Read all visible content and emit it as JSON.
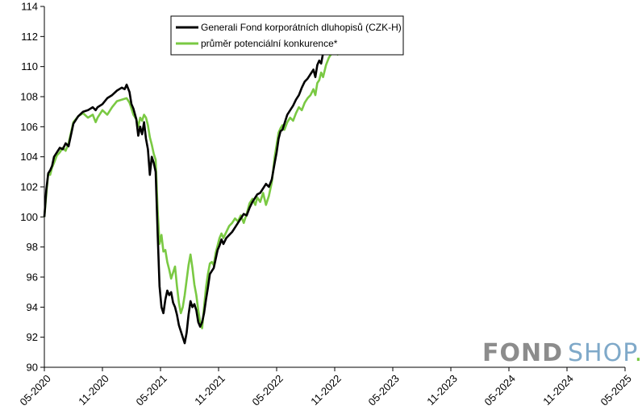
{
  "chart_data": {
    "type": "line",
    "title": "",
    "xlabel": "",
    "ylabel": "",
    "ylim": [
      90,
      114
    ],
    "yticks": [
      90,
      92,
      94,
      96,
      98,
      100,
      102,
      104,
      106,
      108,
      110,
      112,
      114
    ],
    "xticks": [
      "05-2020",
      "11-2020",
      "05-2021",
      "11-2021",
      "05-2022",
      "11-2022",
      "05-2023",
      "11-2023",
      "05-2024",
      "11-2024",
      "05-2025"
    ],
    "grid": false,
    "legend_position": "top-center",
    "series": [
      {
        "name": "Generali Fond korporátních dluhopisů (CZK-H)",
        "color": "#000000",
        "points": [
          [
            0,
            100
          ],
          [
            0.2,
            101.8
          ],
          [
            0.4,
            102.9
          ],
          [
            0.6,
            103.1
          ],
          [
            0.8,
            103.4
          ],
          [
            1.0,
            104.0
          ],
          [
            1.3,
            104.3
          ],
          [
            1.6,
            104.6
          ],
          [
            1.9,
            104.5
          ],
          [
            2.2,
            104.9
          ],
          [
            2.5,
            104.7
          ],
          [
            3.0,
            106.2
          ],
          [
            3.5,
            106.7
          ],
          [
            4.0,
            107.0
          ],
          [
            4.5,
            107.1
          ],
          [
            5.0,
            107.3
          ],
          [
            5.3,
            107.1
          ],
          [
            5.5,
            107.3
          ],
          [
            6.0,
            107.5
          ],
          [
            6.5,
            107.9
          ],
          [
            7.0,
            108.1
          ],
          [
            7.5,
            108.4
          ],
          [
            8.0,
            108.6
          ],
          [
            8.3,
            108.5
          ],
          [
            8.5,
            108.8
          ],
          [
            8.8,
            108.3
          ],
          [
            9.0,
            107.5
          ],
          [
            9.2,
            107.2
          ],
          [
            9.5,
            106.5
          ],
          [
            9.7,
            105.4
          ],
          [
            9.9,
            106.0
          ],
          [
            10.1,
            105.5
          ],
          [
            10.3,
            106.3
          ],
          [
            10.5,
            105.2
          ],
          [
            10.7,
            104.5
          ],
          [
            10.9,
            102.8
          ],
          [
            11.1,
            104.0
          ],
          [
            11.3,
            103.6
          ],
          [
            11.5,
            103.0
          ],
          [
            11.7,
            99.0
          ],
          [
            11.9,
            95.4
          ],
          [
            12.1,
            94.0
          ],
          [
            12.3,
            93.6
          ],
          [
            12.5,
            94.5
          ],
          [
            12.7,
            95.1
          ],
          [
            12.9,
            94.8
          ],
          [
            13.1,
            95.0
          ],
          [
            13.3,
            94.3
          ],
          [
            13.5,
            94.0
          ],
          [
            13.7,
            93.5
          ],
          [
            13.9,
            92.8
          ],
          [
            14.1,
            92.4
          ],
          [
            14.3,
            92.0
          ],
          [
            14.5,
            91.6
          ],
          [
            14.7,
            92.3
          ],
          [
            14.9,
            93.5
          ],
          [
            15.1,
            94.4
          ],
          [
            15.3,
            94.0
          ],
          [
            15.5,
            94.2
          ],
          [
            15.7,
            93.8
          ],
          [
            15.9,
            93.0
          ],
          [
            16.1,
            92.7
          ],
          [
            16.3,
            93.0
          ],
          [
            16.5,
            93.6
          ],
          [
            16.7,
            94.5
          ],
          [
            16.9,
            95.3
          ],
          [
            17.1,
            96.2
          ],
          [
            17.3,
            96.4
          ],
          [
            17.5,
            96.6
          ],
          [
            17.7,
            97.2
          ],
          [
            17.9,
            97.8
          ],
          [
            18.1,
            98.1
          ],
          [
            18.3,
            98.5
          ],
          [
            18.5,
            98.2
          ],
          [
            18.8,
            98.6
          ],
          [
            19.1,
            98.8
          ],
          [
            19.4,
            99.0
          ],
          [
            19.7,
            99.3
          ],
          [
            20.0,
            99.6
          ],
          [
            20.3,
            99.9
          ],
          [
            20.6,
            100.2
          ],
          [
            20.9,
            100.1
          ],
          [
            21.2,
            100.6
          ],
          [
            21.5,
            101.0
          ],
          [
            21.8,
            101.3
          ],
          [
            22.0,
            101.5
          ],
          [
            22.3,
            101.6
          ],
          [
            22.6,
            101.9
          ],
          [
            22.9,
            102.2
          ],
          [
            23.2,
            102.0
          ],
          [
            23.5,
            102.5
          ],
          [
            23.8,
            103.6
          ],
          [
            24.0,
            104.3
          ],
          [
            24.2,
            105.2
          ],
          [
            24.4,
            105.7
          ],
          [
            24.6,
            105.8
          ],
          [
            24.8,
            106.2
          ],
          [
            25.1,
            106.8
          ],
          [
            25.4,
            107.1
          ],
          [
            25.7,
            107.4
          ],
          [
            26.0,
            107.8
          ],
          [
            26.3,
            108.1
          ],
          [
            26.6,
            108.6
          ],
          [
            26.9,
            109.0
          ],
          [
            27.2,
            109.2
          ],
          [
            27.5,
            109.5
          ],
          [
            27.8,
            109.8
          ],
          [
            28.0,
            109.3
          ],
          [
            28.2,
            110.1
          ],
          [
            28.4,
            110.4
          ],
          [
            28.6,
            110.2
          ],
          [
            28.8,
            110.9
          ],
          [
            29.1,
            111.3
          ],
          [
            29.4,
            111.6
          ],
          [
            29.7,
            111.9
          ],
          [
            30.0,
            112.1
          ],
          [
            30.3,
            112.0
          ],
          [
            30.6,
            112.1
          ],
          [
            30.9,
            111.9
          ],
          [
            31.2,
            112.3
          ],
          [
            31.5,
            112.6
          ],
          [
            31.8,
            113.0
          ],
          [
            32.1,
            113.3
          ],
          [
            32.4,
            113.1
          ],
          [
            32.7,
            113.2
          ],
          [
            32.9,
            112.4
          ],
          [
            33.1,
            111.8
          ],
          [
            33.3,
            112.6
          ],
          [
            33.5,
            113.1
          ],
          [
            33.7,
            113.0
          ],
          [
            33.85,
            113.3
          ]
        ]
      },
      {
        "name": "průměr potenciální konkurence*",
        "color": "#7ac943",
        "points": [
          [
            0,
            100
          ],
          [
            0.2,
            101.5
          ],
          [
            0.4,
            102.9
          ],
          [
            0.6,
            102.8
          ],
          [
            0.8,
            103.3
          ],
          [
            1.0,
            103.6
          ],
          [
            1.3,
            104.1
          ],
          [
            1.6,
            104.3
          ],
          [
            1.9,
            104.6
          ],
          [
            2.2,
            104.4
          ],
          [
            2.5,
            104.9
          ],
          [
            3.0,
            106.3
          ],
          [
            3.5,
            106.7
          ],
          [
            4.0,
            106.9
          ],
          [
            4.5,
            106.6
          ],
          [
            5.0,
            106.8
          ],
          [
            5.3,
            106.3
          ],
          [
            5.5,
            106.6
          ],
          [
            6.0,
            107.1
          ],
          [
            6.5,
            106.8
          ],
          [
            7.0,
            107.3
          ],
          [
            7.5,
            107.7
          ],
          [
            8.0,
            107.8
          ],
          [
            8.5,
            107.9
          ],
          [
            8.8,
            107.6
          ],
          [
            9.0,
            107.2
          ],
          [
            9.2,
            106.8
          ],
          [
            9.5,
            106.5
          ],
          [
            9.7,
            106.0
          ],
          [
            9.9,
            106.6
          ],
          [
            10.1,
            106.4
          ],
          [
            10.3,
            106.8
          ],
          [
            10.5,
            106.6
          ],
          [
            10.7,
            106.1
          ],
          [
            10.9,
            105.3
          ],
          [
            11.1,
            104.8
          ],
          [
            11.3,
            104.2
          ],
          [
            11.5,
            103.8
          ],
          [
            11.7,
            100.5
          ],
          [
            11.9,
            98.2
          ],
          [
            12.1,
            98.8
          ],
          [
            12.3,
            97.7
          ],
          [
            12.5,
            97.8
          ],
          [
            12.7,
            97.0
          ],
          [
            12.9,
            96.5
          ],
          [
            13.1,
            95.9
          ],
          [
            13.3,
            96.3
          ],
          [
            13.5,
            96.7
          ],
          [
            13.7,
            95.4
          ],
          [
            13.9,
            94.3
          ],
          [
            14.1,
            93.6
          ],
          [
            14.3,
            94.0
          ],
          [
            14.5,
            94.8
          ],
          [
            14.7,
            95.8
          ],
          [
            14.9,
            96.8
          ],
          [
            15.1,
            97.5
          ],
          [
            15.3,
            96.6
          ],
          [
            15.5,
            95.5
          ],
          [
            15.7,
            94.8
          ],
          [
            15.9,
            93.8
          ],
          [
            16.1,
            93.0
          ],
          [
            16.3,
            92.6
          ],
          [
            16.5,
            94.0
          ],
          [
            16.7,
            95.3
          ],
          [
            16.9,
            96.2
          ],
          [
            17.1,
            96.9
          ],
          [
            17.3,
            97.0
          ],
          [
            17.5,
            96.8
          ],
          [
            17.7,
            97.6
          ],
          [
            17.9,
            98.1
          ],
          [
            18.1,
            98.6
          ],
          [
            18.3,
            98.9
          ],
          [
            18.5,
            98.6
          ],
          [
            18.8,
            99.0
          ],
          [
            19.1,
            99.4
          ],
          [
            19.4,
            99.6
          ],
          [
            19.7,
            99.9
          ],
          [
            20.0,
            99.7
          ],
          [
            20.3,
            100.1
          ],
          [
            20.6,
            99.6
          ],
          [
            20.9,
            100.2
          ],
          [
            21.2,
            100.9
          ],
          [
            21.5,
            101.2
          ],
          [
            21.8,
            100.8
          ],
          [
            22.0,
            101.3
          ],
          [
            22.3,
            101.0
          ],
          [
            22.6,
            101.6
          ],
          [
            22.9,
            100.8
          ],
          [
            23.2,
            101.4
          ],
          [
            23.5,
            102.3
          ],
          [
            23.8,
            104.0
          ],
          [
            24.0,
            104.8
          ],
          [
            24.2,
            105.6
          ],
          [
            24.4,
            105.9
          ],
          [
            24.6,
            106.1
          ],
          [
            24.8,
            105.8
          ],
          [
            25.1,
            106.3
          ],
          [
            25.4,
            106.6
          ],
          [
            25.7,
            106.4
          ],
          [
            26.0,
            106.9
          ],
          [
            26.3,
            107.3
          ],
          [
            26.6,
            107.1
          ],
          [
            26.9,
            107.6
          ],
          [
            27.2,
            107.9
          ],
          [
            27.5,
            108.1
          ],
          [
            27.8,
            108.5
          ],
          [
            28.0,
            108.1
          ],
          [
            28.2,
            108.9
          ],
          [
            28.4,
            109.1
          ],
          [
            28.6,
            109.6
          ],
          [
            28.8,
            109.3
          ],
          [
            29.1,
            110.1
          ],
          [
            29.4,
            110.6
          ],
          [
            29.7,
            110.9
          ],
          [
            30.0,
            111.1
          ],
          [
            30.3,
            110.8
          ],
          [
            30.6,
            111.3
          ],
          [
            30.9,
            111.1
          ],
          [
            31.2,
            111.5
          ],
          [
            31.5,
            111.8
          ],
          [
            31.8,
            112.1
          ],
          [
            32.1,
            111.4
          ],
          [
            32.4,
            112.3
          ],
          [
            32.7,
            112.5
          ],
          [
            32.9,
            111.8
          ],
          [
            33.1,
            111.0
          ],
          [
            33.3,
            111.9
          ],
          [
            33.5,
            112.4
          ],
          [
            33.7,
            112.5
          ],
          [
            33.85,
            112.7
          ]
        ]
      }
    ]
  },
  "watermark": {
    "part1": "FOND",
    "part2": "SHOP",
    "part3": ".",
    "color_grey": "#8c8c8c",
    "color_blue": "#7fa9c9",
    "color_green": "#7ac943"
  }
}
